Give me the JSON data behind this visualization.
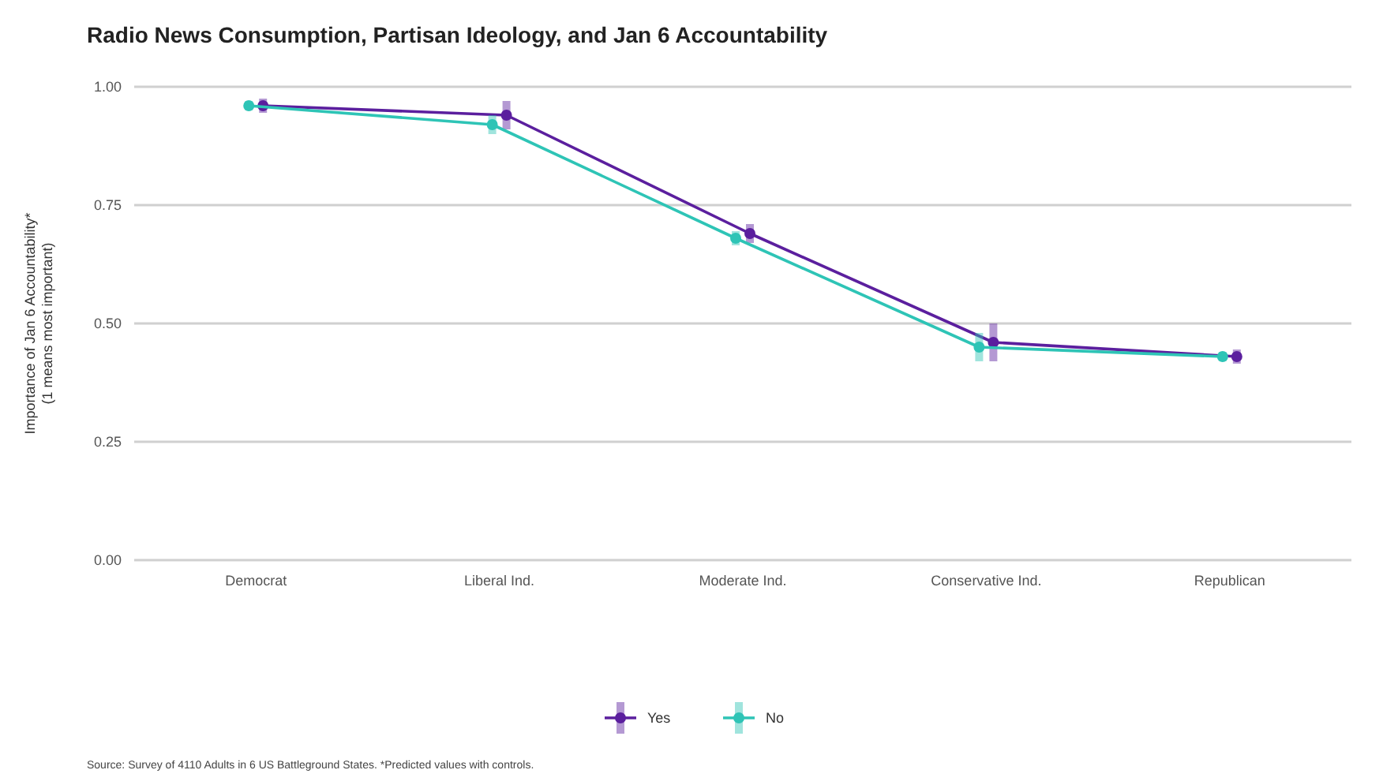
{
  "chart_data": {
    "type": "line",
    "title": "Radio News Consumption, Partisan Ideology, and Jan 6 Accountability",
    "ylabel": "Importance of Jan 6 Accountability*\n(1 means most important)",
    "categories": [
      "Democrat",
      "Liberal Ind.",
      "Moderate Ind.",
      "Conservative Ind.",
      "Republican"
    ],
    "series": [
      {
        "name": "Yes",
        "color": "#5b1f9e",
        "values": [
          0.96,
          0.94,
          0.69,
          0.46,
          0.43
        ],
        "errors": [
          0.015,
          0.03,
          0.02,
          0.04,
          0.015
        ]
      },
      {
        "name": "No",
        "color": "#2ec4b6",
        "values": [
          0.96,
          0.92,
          0.68,
          0.45,
          0.43
        ],
        "errors": [
          0.01,
          0.02,
          0.015,
          0.03,
          0.01
        ]
      }
    ],
    "ylim": [
      0,
      1
    ],
    "yticks": [
      {
        "value": 0,
        "label": "0.00"
      },
      {
        "value": 0.25,
        "label": "0.25"
      },
      {
        "value": 0.5,
        "label": "0.50"
      },
      {
        "value": 0.75,
        "label": "0.75"
      },
      {
        "value": 1,
        "label": "1.00"
      }
    ],
    "grid": "y",
    "legend": "bottom",
    "marker": "circle",
    "line_style": "solid",
    "annotations": [
      "Source: Survey of 4110 Adults in 6 US Battleground States. *Predicted values with controls."
    ]
  }
}
